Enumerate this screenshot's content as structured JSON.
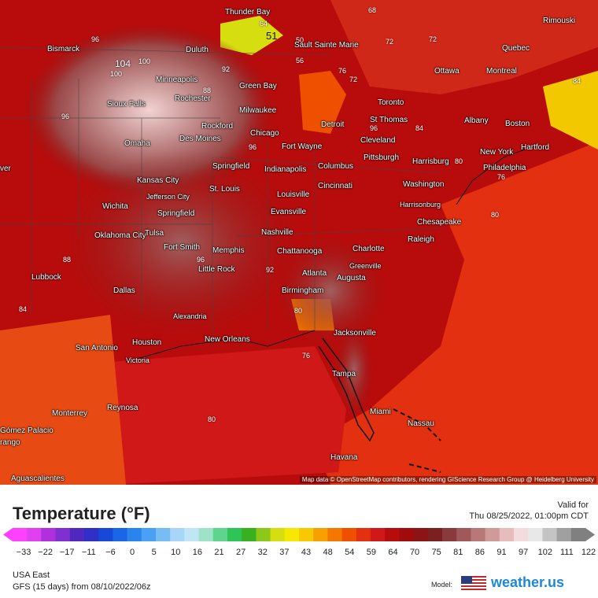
{
  "map": {
    "attribution": "Map data © OpenStreetMap contributors, rendering GIScience Research Group @ Heidelberg University",
    "cities": [
      {
        "name": "Thunder Bay"
      },
      {
        "name": "Sault Sainte Marie"
      },
      {
        "name": "Rimouski"
      },
      {
        "name": "Bismarck"
      },
      {
        "name": "Duluth"
      },
      {
        "name": "Quebec"
      },
      {
        "name": "Ottawa"
      },
      {
        "name": "Montreal"
      },
      {
        "name": "Minneapolis"
      },
      {
        "name": "Green Bay"
      },
      {
        "name": "Rochester"
      },
      {
        "name": "Sioux Falls"
      },
      {
        "name": "Milwaukee"
      },
      {
        "name": "Toronto"
      },
      {
        "name": "Albany"
      },
      {
        "name": "Boston"
      },
      {
        "name": "Rockford"
      },
      {
        "name": "Detroit"
      },
      {
        "name": "St Thomas"
      },
      {
        "name": "Chicago"
      },
      {
        "name": "Des Moines"
      },
      {
        "name": "Cleveland"
      },
      {
        "name": "Omaha"
      },
      {
        "name": "Fort Wayne"
      },
      {
        "name": "New York"
      },
      {
        "name": "Hartford"
      },
      {
        "name": "Pittsburgh"
      },
      {
        "name": "Harrisburg"
      },
      {
        "name": "Philadelphia"
      },
      {
        "name": "Springfield"
      },
      {
        "name": "Indianapolis"
      },
      {
        "name": "Columbus"
      },
      {
        "name": "Kansas City"
      },
      {
        "name": "Cincinnati"
      },
      {
        "name": "Washington"
      },
      {
        "name": "St. Louis"
      },
      {
        "name": "Jefferson City"
      },
      {
        "name": "Louisville"
      },
      {
        "name": "Harrisonburg"
      },
      {
        "name": "Wichita"
      },
      {
        "name": "Evansville"
      },
      {
        "name": "Springfield"
      },
      {
        "name": "Chesapeake"
      },
      {
        "name": "Nashville"
      },
      {
        "name": "Oklahoma City"
      },
      {
        "name": "Tulsa"
      },
      {
        "name": "Raleigh"
      },
      {
        "name": "Fort Smith"
      },
      {
        "name": "Memphis"
      },
      {
        "name": "Charlotte"
      },
      {
        "name": "Chattanooga"
      },
      {
        "name": "Greenville"
      },
      {
        "name": "Lubbock"
      },
      {
        "name": "Little Rock"
      },
      {
        "name": "Atlanta"
      },
      {
        "name": "Augusta"
      },
      {
        "name": "Dallas"
      },
      {
        "name": "Birmingham"
      },
      {
        "name": "Alexandria"
      },
      {
        "name": "Jacksonville"
      },
      {
        "name": "San Antonio"
      },
      {
        "name": "Houston"
      },
      {
        "name": "New Orleans"
      },
      {
        "name": "Victoria"
      },
      {
        "name": "Tampa"
      },
      {
        "name": "Reynosa"
      },
      {
        "name": "Monterrey"
      },
      {
        "name": "Miami"
      },
      {
        "name": "Nassau"
      },
      {
        "name": "Gómez Palacio"
      },
      {
        "name": "rango"
      },
      {
        "name": "Havana"
      },
      {
        "name": "Aguascalientes"
      },
      {
        "name": "ver"
      }
    ],
    "isolines": [
      "64",
      "51",
      "68",
      "72",
      "50",
      "56",
      "72",
      "76",
      "72",
      "96",
      "100",
      "104",
      "100",
      "96",
      "92",
      "88",
      "84",
      "80",
      "80",
      "96",
      "96",
      "92",
      "80",
      "76",
      "76",
      "88",
      "84",
      "96",
      "80",
      "84",
      "92",
      "92",
      "88",
      "84",
      "80",
      "80",
      "84",
      "76",
      "76",
      "80",
      "80",
      "84",
      "84",
      "80",
      "88",
      "84",
      "92",
      "92",
      "84",
      "84",
      "76",
      "84",
      "84",
      "80",
      "76",
      "84"
    ]
  },
  "legend": {
    "title": "Temperature (°F)",
    "valid_label": "Valid for",
    "valid_date": "Thu 08/25/2022, 01:00pm CDT",
    "ticks": [
      "−33",
      "−22",
      "−17",
      "−11",
      "−6",
      "0",
      "5",
      "10",
      "16",
      "21",
      "27",
      "32",
      "37",
      "43",
      "48",
      "54",
      "59",
      "64",
      "70",
      "75",
      "81",
      "86",
      "91",
      "97",
      "102",
      "111",
      "122"
    ],
    "colors": [
      "#ff40ff",
      "#e040f0",
      "#b030e0",
      "#8030d0",
      "#5028c0",
      "#3030c8",
      "#1848d8",
      "#1a66e6",
      "#2a84ee",
      "#4aa0f4",
      "#78bcf6",
      "#a8d6fa",
      "#bfe6f4",
      "#9ee3c8",
      "#5ed48e",
      "#2ec456",
      "#38b020",
      "#8cc818",
      "#d6de10",
      "#f6e800",
      "#f8c800",
      "#f8a000",
      "#f47800",
      "#ee5000",
      "#e23010",
      "#d01818",
      "#b80c0c",
      "#a00c0c",
      "#8c1414",
      "#7a2020",
      "#8a3a3a",
      "#a05858",
      "#b87878",
      "#d09a9a",
      "#e6bcbc",
      "#f4dcdc",
      "#e8e8e8",
      "#c4c4c4",
      "#a0a0a0",
      "#808080"
    ]
  },
  "footer": {
    "region": "USA East",
    "model_run": "GFS (15 days) from  08/10/2022/06z",
    "model_label": "Model:",
    "brand": "weather.us"
  }
}
